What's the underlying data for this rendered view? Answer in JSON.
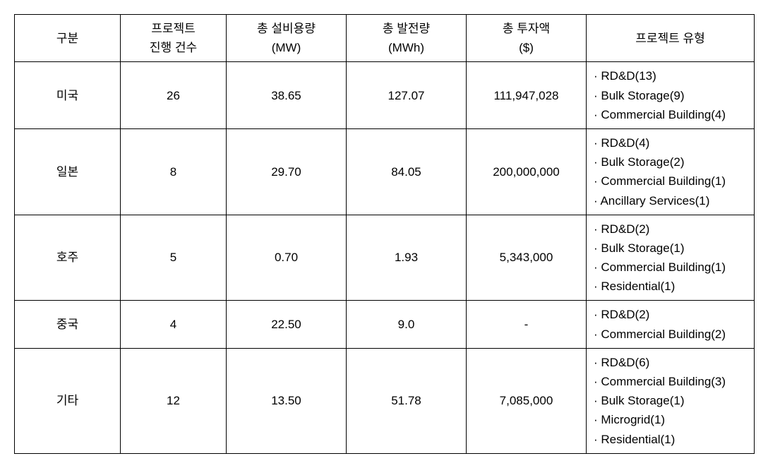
{
  "table": {
    "columns": [
      {
        "label": "구분",
        "sub": ""
      },
      {
        "label": "프로젝트",
        "sub": "진행 건수"
      },
      {
        "label": "총 설비용량",
        "sub": "(MW)"
      },
      {
        "label": "총 발전량",
        "sub": "(MWh)"
      },
      {
        "label": "총 투자액",
        "sub": "($)"
      },
      {
        "label": "프로젝트 유형",
        "sub": ""
      }
    ],
    "rows": [
      {
        "country": "미국",
        "count": "26",
        "capacity": "38.65",
        "generation": "127.07",
        "investment": "111,947,028",
        "types": [
          "RD&D(13)",
          "Bulk Storage(9)",
          "Commercial Building(4)"
        ]
      },
      {
        "country": "일본",
        "count": "8",
        "capacity": "29.70",
        "generation": "84.05",
        "investment": "200,000,000",
        "types": [
          "RD&D(4)",
          "Bulk Storage(2)",
          "Commercial Building(1)",
          "Ancillary Services(1)"
        ]
      },
      {
        "country": "호주",
        "count": "5",
        "capacity": "0.70",
        "generation": "1.93",
        "investment": "5,343,000",
        "types": [
          "RD&D(2)",
          "Bulk Storage(1)",
          "Commercial Building(1)",
          "Residential(1)"
        ]
      },
      {
        "country": "중국",
        "count": "4",
        "capacity": "22.50",
        "generation": "9.0",
        "investment": "-",
        "types": [
          "RD&D(2)",
          "Commercial Building(2)"
        ]
      },
      {
        "country": "기타",
        "count": "12",
        "capacity": "13.50",
        "generation": "51.78",
        "investment": "7,085,000",
        "types": [
          "RD&D(6)",
          "Commercial Building(3)",
          "Bulk Storage(1)",
          "Microgrid(1)",
          "Residential(1)"
        ]
      }
    ],
    "bullet": "·",
    "border_color": "#000000",
    "background_color": "#ffffff",
    "text_color": "#000000",
    "font_size_pt": 13
  }
}
